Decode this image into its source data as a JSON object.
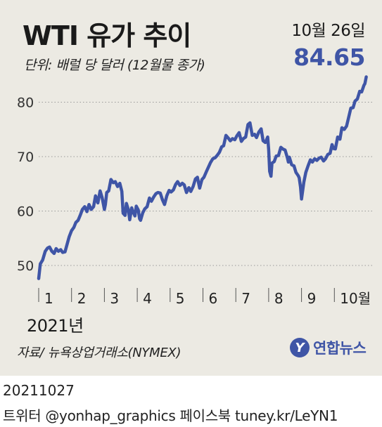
{
  "header": {
    "title": "WTI 유가 추이",
    "subtitle": "단위: 배럴 당 달러 (12월물 종가)",
    "latest_date": "10월 26일",
    "latest_value": "84.65"
  },
  "year_label": "2021년",
  "source": "자료/ 뉴욕상업거래소(NYMEX)",
  "logo": {
    "icon": "Y",
    "text": "연합뉴스"
  },
  "footer": {
    "date": "20211027",
    "credits": "트위터 @yonhap_graphics  페이스북 tuney.kr/LeYN1"
  },
  "colors": {
    "line": "#3f55a6",
    "background": "#eceae3",
    "grid": "#9a9a9a"
  },
  "chart_data": {
    "type": "line",
    "title": "WTI 유가 추이",
    "ylabel": "단위: 배럴 당 달러 (12월물 종가)",
    "xlabel": "2021년",
    "x_tick_labels": [
      "1",
      "2",
      "3",
      "4",
      "5",
      "6",
      "7",
      "8",
      "9",
      "10월"
    ],
    "y_ticks": [
      50,
      60,
      70,
      80
    ],
    "ylim": [
      46.5,
      86
    ],
    "grid": "horizontal dotted",
    "annotation": {
      "label": "10월 26일",
      "value": 84.65
    },
    "series": [
      {
        "points": [
          [
            1.0,
            47.6
          ],
          [
            1.05,
            50.3
          ],
          [
            1.12,
            51.0
          ],
          [
            1.2,
            52.6
          ],
          [
            1.27,
            53.2
          ],
          [
            1.33,
            53.4
          ],
          [
            1.4,
            52.6
          ],
          [
            1.47,
            52.2
          ],
          [
            1.53,
            53.1
          ],
          [
            1.6,
            52.6
          ],
          [
            1.67,
            52.9
          ],
          [
            1.73,
            52.4
          ],
          [
            1.8,
            52.5
          ],
          [
            1.87,
            54.0
          ],
          [
            1.93,
            55.3
          ],
          [
            2.0,
            56.4
          ],
          [
            2.07,
            57.0
          ],
          [
            2.13,
            57.9
          ],
          [
            2.2,
            58.3
          ],
          [
            2.27,
            59.3
          ],
          [
            2.33,
            60.3
          ],
          [
            2.4,
            60.8
          ],
          [
            2.47,
            59.9
          ],
          [
            2.53,
            61.2
          ],
          [
            2.6,
            60.3
          ],
          [
            2.67,
            60.8
          ],
          [
            2.73,
            62.8
          ],
          [
            2.8,
            61.5
          ],
          [
            2.87,
            63.7
          ],
          [
            2.93,
            62.5
          ],
          [
            3.0,
            60.3
          ],
          [
            3.03,
            61.2
          ],
          [
            3.07,
            63.4
          ],
          [
            3.13,
            63.7
          ],
          [
            3.2,
            65.8
          ],
          [
            3.27,
            65.2
          ],
          [
            3.33,
            65.4
          ],
          [
            3.4,
            64.5
          ],
          [
            3.47,
            65.1
          ],
          [
            3.53,
            63.6
          ],
          [
            3.57,
            59.6
          ],
          [
            3.63,
            59.2
          ],
          [
            3.67,
            61.4
          ],
          [
            3.73,
            60.2
          ],
          [
            3.77,
            58.4
          ],
          [
            3.83,
            60.6
          ],
          [
            3.87,
            59.9
          ],
          [
            3.93,
            59.1
          ],
          [
            3.97,
            60.9
          ],
          [
            4.03,
            60.2
          ],
          [
            4.07,
            58.6
          ],
          [
            4.1,
            58.3
          ],
          [
            4.17,
            59.7
          ],
          [
            4.23,
            60.4
          ],
          [
            4.3,
            60.8
          ],
          [
            4.37,
            62.4
          ],
          [
            4.43,
            61.8
          ],
          [
            4.5,
            62.6
          ],
          [
            4.57,
            63.2
          ],
          [
            4.63,
            63.4
          ],
          [
            4.7,
            63.3
          ],
          [
            4.77,
            62.0
          ],
          [
            4.83,
            61.2
          ],
          [
            4.9,
            62.8
          ],
          [
            4.97,
            63.8
          ],
          [
            5.03,
            63.5
          ],
          [
            5.1,
            63.9
          ],
          [
            5.17,
            64.9
          ],
          [
            5.23,
            65.4
          ],
          [
            5.3,
            64.7
          ],
          [
            5.37,
            65.1
          ],
          [
            5.43,
            64.8
          ],
          [
            5.5,
            63.4
          ],
          [
            5.57,
            64.3
          ],
          [
            5.63,
            63.6
          ],
          [
            5.7,
            64.5
          ],
          [
            5.77,
            65.9
          ],
          [
            5.83,
            66.2
          ],
          [
            5.9,
            64.2
          ],
          [
            5.97,
            65.8
          ],
          [
            6.03,
            66.2
          ],
          [
            6.1,
            67.2
          ],
          [
            6.17,
            68.1
          ],
          [
            6.23,
            68.9
          ],
          [
            6.3,
            69.6
          ],
          [
            6.37,
            69.8
          ],
          [
            6.43,
            70.2
          ],
          [
            6.5,
            70.8
          ],
          [
            6.57,
            71.8
          ],
          [
            6.63,
            72.0
          ],
          [
            6.7,
            73.9
          ],
          [
            6.77,
            73.4
          ],
          [
            6.83,
            72.9
          ],
          [
            6.9,
            73.3
          ],
          [
            6.97,
            73.1
          ],
          [
            7.03,
            73.8
          ],
          [
            7.1,
            74.4
          ],
          [
            7.17,
            72.8
          ],
          [
            7.23,
            73.3
          ],
          [
            7.3,
            73.6
          ],
          [
            7.37,
            75.9
          ],
          [
            7.43,
            76.2
          ],
          [
            7.5,
            73.9
          ],
          [
            7.57,
            74.1
          ],
          [
            7.63,
            73.5
          ],
          [
            7.7,
            74.5
          ],
          [
            7.77,
            75.1
          ],
          [
            7.83,
            72.9
          ],
          [
            7.9,
            72.6
          ],
          [
            7.97,
            73.6
          ],
          [
            8.0,
            71.3
          ],
          [
            8.03,
            67.3
          ],
          [
            8.07,
            66.4
          ],
          [
            8.1,
            68.8
          ],
          [
            8.17,
            69.1
          ],
          [
            8.23,
            70.1
          ],
          [
            8.3,
            70.2
          ],
          [
            8.37,
            71.7
          ],
          [
            8.43,
            71.4
          ],
          [
            8.5,
            71.2
          ],
          [
            8.57,
            69.8
          ],
          [
            8.6,
            69.0
          ],
          [
            8.63,
            69.9
          ],
          [
            8.7,
            68.5
          ],
          [
            8.77,
            68.3
          ],
          [
            8.83,
            67.1
          ],
          [
            8.9,
            66.5
          ],
          [
            8.93,
            66.1
          ],
          [
            8.97,
            64.4
          ],
          [
            9.0,
            62.2
          ],
          [
            9.07,
            65.3
          ],
          [
            9.13,
            67.1
          ],
          [
            9.2,
            68.3
          ],
          [
            9.27,
            69.4
          ],
          [
            9.33,
            69.0
          ],
          [
            9.4,
            69.6
          ],
          [
            9.47,
            69.3
          ],
          [
            9.53,
            69.7
          ],
          [
            9.6,
            69.9
          ],
          [
            9.67,
            69.2
          ],
          [
            9.73,
            69.6
          ],
          [
            9.8,
            70.4
          ],
          [
            9.87,
            70.6
          ],
          [
            9.93,
            72.2
          ],
          [
            9.97,
            71.5
          ],
          [
            10.03,
            71.4
          ],
          [
            10.1,
            73.6
          ],
          [
            10.17,
            73.2
          ],
          [
            10.23,
            75.3
          ],
          [
            10.3,
            75.0
          ],
          [
            10.37,
            75.6
          ],
          [
            10.43,
            77.1
          ],
          [
            10.5,
            78.9
          ],
          [
            10.57,
            79.0
          ],
          [
            10.63,
            80.2
          ],
          [
            10.7,
            80.6
          ],
          [
            10.77,
            82.0
          ],
          [
            10.83,
            81.9
          ],
          [
            10.9,
            83.1
          ],
          [
            10.93,
            83.4
          ],
          [
            10.97,
            84.65
          ]
        ]
      }
    ]
  }
}
